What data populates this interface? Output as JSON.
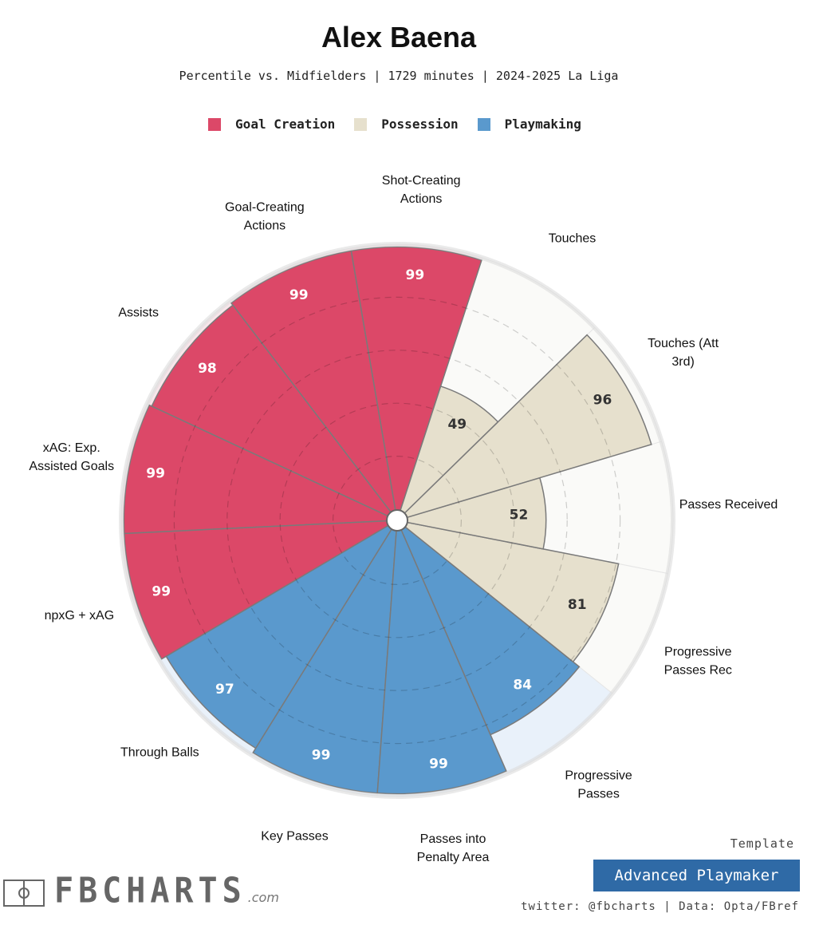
{
  "header": {
    "title": "Alex Baena",
    "subtitle": "Percentile vs. Midfielders | 1729 minutes | 2024-2025 La Liga"
  },
  "legend": [
    {
      "label": "Goal Creation",
      "color": "#dc4868"
    },
    {
      "label": "Possession",
      "color": "#e6e0cd"
    },
    {
      "label": "Playmaking",
      "color": "#5a99cd"
    }
  ],
  "chart_data": {
    "type": "radial-bar",
    "range": [
      0,
      100
    ],
    "gridlines": [
      20,
      40,
      60,
      80
    ],
    "series": [
      {
        "name": "Goal Creation",
        "color": "#dc4868",
        "background": "#f8e5ea",
        "metrics": [
          {
            "label": "Shot-Creating Actions",
            "value": 99
          },
          {
            "label": "Goal-Creating Actions",
            "value": 99
          },
          {
            "label": "Assists",
            "value": 98
          },
          {
            "label": "xAG: Exp. Assisted Goals",
            "value": 99
          },
          {
            "label": "npxG + xAG",
            "value": 99
          }
        ]
      },
      {
        "name": "Playmaking",
        "color": "#5a99cd",
        "background": "#e9f1fa",
        "metrics": [
          {
            "label": "Through Balls",
            "value": 97
          },
          {
            "label": "Key Passes",
            "value": 99
          },
          {
            "label": "Passes into Penalty Area",
            "value": 99
          },
          {
            "label": "Progressive Passes",
            "value": 84
          }
        ]
      },
      {
        "name": "Possession",
        "color": "#e6e0cd",
        "background": "#fafaf8",
        "metrics": [
          {
            "label": "Progressive Passes Rec",
            "value": 81
          },
          {
            "label": "Passes Received",
            "value": 52
          },
          {
            "label": "Touches (Att 3rd)",
            "value": 96
          },
          {
            "label": "Touches",
            "value": 49
          }
        ]
      }
    ]
  },
  "footer": {
    "brand": "FBCHARTS",
    "brand_domain": ".com",
    "template_label": "Template",
    "template_name": "Advanced Playmaker",
    "credits": "twitter: @fbcharts | Data: Opta/FBref"
  }
}
